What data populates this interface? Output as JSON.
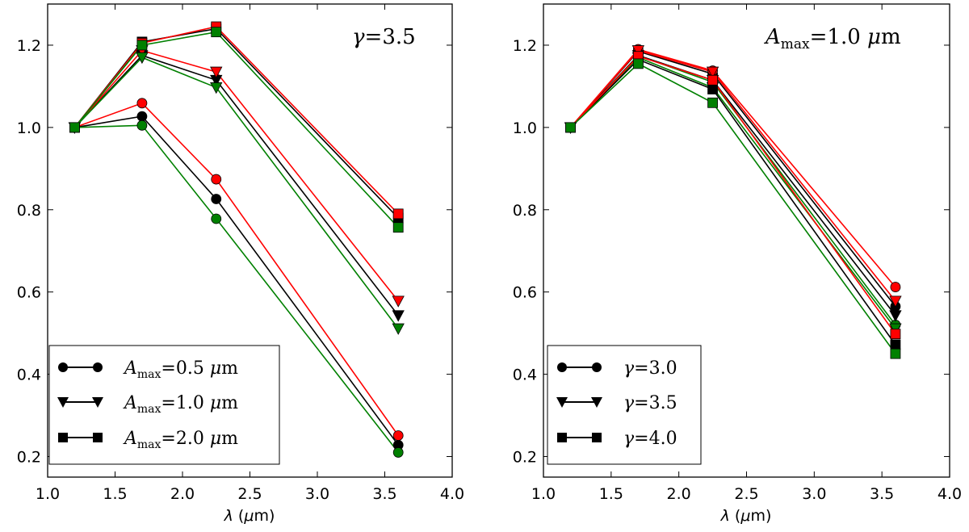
{
  "chart_data": [
    {
      "type": "line",
      "panel": "left",
      "annotation": "γ=3.5",
      "xlabel": "λ (μm)",
      "ylabel": "",
      "xlim": [
        1.0,
        4.0
      ],
      "ylim": [
        0.15,
        1.3
      ],
      "xticks": [
        "1.0",
        "1.5",
        "2.0",
        "2.5",
        "3.0",
        "3.5",
        "4.0"
      ],
      "xtick_values": [
        1.0,
        1.5,
        2.0,
        2.5,
        3.0,
        3.5,
        4.0
      ],
      "yticks": [
        "0.2",
        "0.4",
        "0.6",
        "0.8",
        "1.0",
        "1.2"
      ],
      "ytick_values": [
        0.2,
        0.4,
        0.6,
        0.8,
        1.0,
        1.2
      ],
      "x": [
        1.2,
        1.7,
        2.25,
        3.6
      ],
      "legend": {
        "location": "lower-left",
        "entries": [
          {
            "label": "A_max=0.5 μm",
            "marker": "circle"
          },
          {
            "label": "A_max=1.0 μm",
            "marker": "triangle-down"
          },
          {
            "label": "A_max=2.0 μm",
            "marker": "square"
          }
        ]
      },
      "series": [
        {
          "name": "A_max=0.5 μm, black",
          "marker": "circle",
          "color": "#000000",
          "values": [
            1.0,
            1.027,
            0.826,
            0.228
          ]
        },
        {
          "name": "A_max=0.5 μm, red",
          "marker": "circle",
          "color": "#ff0000",
          "values": [
            1.0,
            1.059,
            0.874,
            0.251
          ]
        },
        {
          "name": "A_max=0.5 μm, green",
          "marker": "circle",
          "color": "#008000",
          "values": [
            1.0,
            1.005,
            0.778,
            0.21
          ]
        },
        {
          "name": "A_max=1.0 μm, black",
          "marker": "triangle-down",
          "color": "#000000",
          "values": [
            1.0,
            1.175,
            1.115,
            0.543
          ]
        },
        {
          "name": "A_max=1.0 μm, red",
          "marker": "triangle-down",
          "color": "#ff0000",
          "values": [
            1.0,
            1.187,
            1.135,
            0.578
          ]
        },
        {
          "name": "A_max=1.0 μm, green",
          "marker": "triangle-down",
          "color": "#008000",
          "values": [
            1.0,
            1.17,
            1.097,
            0.511
          ]
        },
        {
          "name": "A_max=2.0 μm, black",
          "marker": "square",
          "color": "#000000",
          "values": [
            1.0,
            1.208,
            1.24,
            0.78
          ]
        },
        {
          "name": "A_max=2.0 μm, red",
          "marker": "square",
          "color": "#ff0000",
          "values": [
            1.0,
            1.205,
            1.245,
            0.79
          ]
        },
        {
          "name": "A_max=2.0 μm, green",
          "marker": "square",
          "color": "#008000",
          "values": [
            1.0,
            1.2,
            1.232,
            0.757
          ]
        }
      ]
    },
    {
      "type": "line",
      "panel": "right",
      "annotation": "A_max=1.0 μm",
      "xlabel": "λ (μm)",
      "ylabel": "",
      "xlim": [
        1.0,
        4.0
      ],
      "ylim": [
        0.15,
        1.3
      ],
      "xticks": [
        "1.0",
        "1.5",
        "2.0",
        "2.5",
        "3.0",
        "3.5",
        "4.0"
      ],
      "xtick_values": [
        1.0,
        1.5,
        2.0,
        2.5,
        3.0,
        3.5,
        4.0
      ],
      "yticks": [
        "0.2",
        "0.4",
        "0.6",
        "0.8",
        "1.0",
        "1.2"
      ],
      "ytick_values": [
        0.2,
        0.4,
        0.6,
        0.8,
        1.0,
        1.2
      ],
      "x": [
        1.2,
        1.7,
        2.25,
        3.6
      ],
      "legend": {
        "location": "lower-left",
        "entries": [
          {
            "label": "γ=3.0",
            "marker": "circle"
          },
          {
            "label": "γ=3.5",
            "marker": "triangle-down"
          },
          {
            "label": "γ=4.0",
            "marker": "square"
          }
        ]
      },
      "series": [
        {
          "name": "γ=3.0, black",
          "marker": "circle",
          "color": "#000000",
          "values": [
            1.0,
            1.185,
            1.13,
            0.565
          ]
        },
        {
          "name": "γ=3.0, red",
          "marker": "circle",
          "color": "#ff0000",
          "values": [
            1.0,
            1.19,
            1.138,
            0.612
          ]
        },
        {
          "name": "γ=3.0, green",
          "marker": "circle",
          "color": "#008000",
          "values": [
            1.0,
            1.175,
            1.11,
            0.52
          ]
        },
        {
          "name": "γ=3.5, black",
          "marker": "triangle-down",
          "color": "#000000",
          "values": [
            1.0,
            1.175,
            1.115,
            0.543
          ]
        },
        {
          "name": "γ=3.5, red",
          "marker": "triangle-down",
          "color": "#ff0000",
          "values": [
            1.0,
            1.187,
            1.135,
            0.578
          ]
        },
        {
          "name": "γ=3.5, green",
          "marker": "triangle-down",
          "color": "#008000",
          "values": [
            1.0,
            1.17,
            1.097,
            0.511
          ]
        },
        {
          "name": "γ=4.0, black",
          "marker": "square",
          "color": "#000000",
          "values": [
            1.0,
            1.165,
            1.093,
            0.472
          ]
        },
        {
          "name": "γ=4.0, red",
          "marker": "square",
          "color": "#ff0000",
          "values": [
            1.0,
            1.173,
            1.115,
            0.498
          ]
        },
        {
          "name": "γ=4.0, green",
          "marker": "square",
          "color": "#008000",
          "values": [
            1.0,
            1.155,
            1.06,
            0.45
          ]
        }
      ]
    }
  ]
}
